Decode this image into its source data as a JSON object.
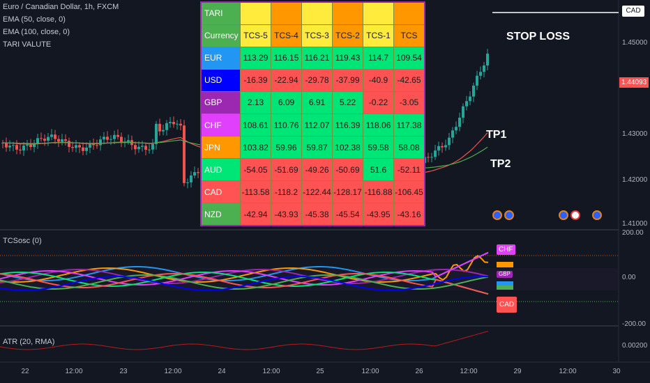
{
  "legend": {
    "symbol": "Euro / Canadian Dollar, 1h, FXCM",
    "ema50": "EMA (50, close, 0)",
    "ema100": "EMA (100, close, 0)",
    "tari": "TARI VALUTE",
    "tcsosc": "TCSosc (0)",
    "atr": "ATR (20, RMA)"
  },
  "price_axis": {
    "labels": [
      "1.45000",
      "1.43000",
      "1.42000",
      "1.41000"
    ],
    "current": "1.44093",
    "osc_labels": [
      "200.00",
      "0.00",
      "-200.00"
    ],
    "atr_label": "0.00200"
  },
  "top_badge": "CAD",
  "time_axis": [
    "22",
    "12:00",
    "23",
    "12:00",
    "24",
    "12:00",
    "25",
    "12:00",
    "26",
    "12:00",
    "29",
    "12:00",
    "30"
  ],
  "annotations": {
    "stop_loss": "STOP LOSS",
    "tp1": "TP1",
    "tp2": "TP2"
  },
  "osc_badges": [
    "CHF",
    "GBP",
    "CAD"
  ],
  "table": {
    "header_title": "TARI",
    "header_label": "Currency",
    "columns": [
      "TCS-5",
      "TCS-4",
      "TCS-3",
      "TCS-2",
      "TCS-1",
      "TCS"
    ],
    "rows": [
      {
        "currency": "EUR",
        "values": [
          "113.29",
          "116.15",
          "116.21",
          "119.43",
          "114.7",
          "109.54"
        ]
      },
      {
        "currency": "USD",
        "values": [
          "-16.39",
          "-22.94",
          "-29.78",
          "-37.99",
          "-40.9",
          "-42.65"
        ]
      },
      {
        "currency": "GBP",
        "values": [
          "2.13",
          "6.09",
          "6.91",
          "5.22",
          "-0.22",
          "-3.05"
        ]
      },
      {
        "currency": "CHF",
        "values": [
          "108.61",
          "110.76",
          "112.07",
          "116.39",
          "118.06",
          "117.38"
        ]
      },
      {
        "currency": "JPN",
        "values": [
          "103.82",
          "59.96",
          "59.87",
          "102.38",
          "59.58",
          "58.08"
        ]
      },
      {
        "currency": "AUD",
        "values": [
          "-54.05",
          "-51.69",
          "-49.26",
          "-50.69",
          "51.6",
          "-52.11"
        ]
      },
      {
        "currency": "CAD",
        "values": [
          "-113.58",
          "-118.2",
          "-122.44",
          "-128.17",
          "-116.88",
          "-106.45"
        ]
      },
      {
        "currency": "NZD",
        "values": [
          "-42.94",
          "-43.93",
          "-45.38",
          "-45.54",
          "-43.95",
          "-43.16"
        ]
      }
    ],
    "colors": {
      "header_title_bg": "#4caf50",
      "header_yellow": "#ffeb3b",
      "header_orange": "#ff9800",
      "positive": "#00e676",
      "negative": "#ff5252",
      "row_label": {
        "EUR": "#2196f3",
        "USD": "#0000ff",
        "GBP": "#9c27b0",
        "CHF": "#e040fb",
        "JPN": "#ff9800",
        "AUD": "#00e676",
        "CAD": "#ff5252",
        "NZD": "#4caf50"
      }
    }
  }
}
